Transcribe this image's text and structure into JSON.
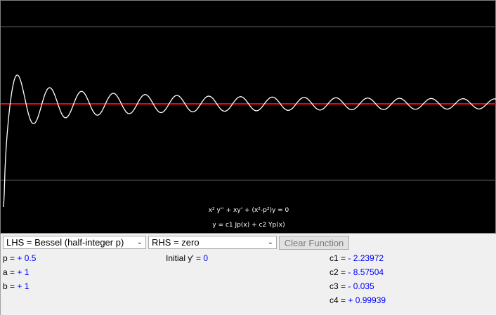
{
  "equation": {
    "line1": "x² y'' + xy' + (x²-p²)y = 0",
    "line2": "y = c1 Jp(x) + c2 Yp(x)"
  },
  "plot": {
    "background": "#000000",
    "curve_color": "#ffffff",
    "axis_color": "#ff0000",
    "grid_color": "#606060",
    "curve": "y = c1·J(0.5,x) + c2·Y(0.5,x)"
  },
  "controls": {
    "lhs_select": "LHS = Bessel (half-integer p)",
    "rhs_select": "RHS = zero",
    "clear_button": "Clear Function",
    "p": {
      "label": "p = ",
      "value": "+ 0.5"
    },
    "a": {
      "label": "a = ",
      "value": "+ 1"
    },
    "b": {
      "label": "b = ",
      "value": "+ 1"
    },
    "initial_y": {
      "label": "Initial y' = ",
      "value": "0"
    },
    "c1": {
      "label": "c1 = ",
      "value": "-  2.23972"
    },
    "c2": {
      "label": "c2 = ",
      "value": "-  8.57504"
    },
    "c3": {
      "label": "c3 = ",
      "value": "-  0.035"
    },
    "c4": {
      "label": "c4 = ",
      "value": "+ 0.99939"
    }
  }
}
